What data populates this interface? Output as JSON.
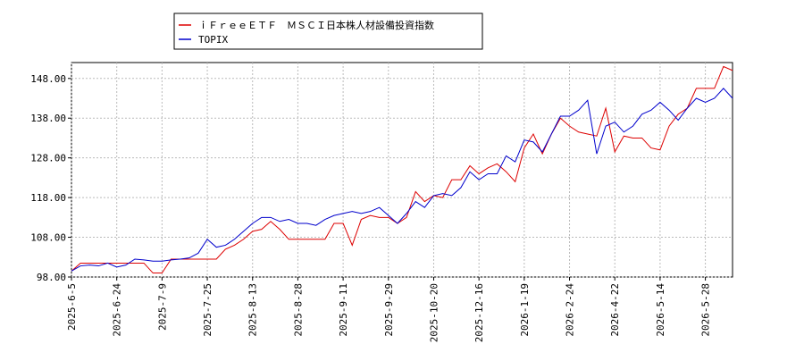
{
  "chart_data": {
    "type": "line",
    "categories": [
      "2025-6-5",
      null,
      null,
      null,
      null,
      "2025-6-24",
      null,
      null,
      null,
      null,
      "2025-7-9",
      null,
      null,
      null,
      null,
      "2025-7-25",
      null,
      null,
      null,
      null,
      "2025-8-13",
      null,
      null,
      null,
      null,
      "2025-8-28",
      null,
      null,
      null,
      null,
      "2025-9-11",
      null,
      null,
      null,
      null,
      "2025-9-29",
      null,
      null,
      null,
      null,
      "2025-10-20",
      null,
      null,
      null,
      null,
      "2025-12-16",
      null,
      null,
      null,
      null,
      "2026-1-19",
      null,
      null,
      null,
      null,
      "2026-2-24",
      null,
      null,
      null,
      null,
      "2026-4-22",
      null,
      null,
      null,
      null,
      "2026-5-14",
      null,
      null,
      null,
      null,
      "2026-5-28",
      null,
      null,
      null
    ],
    "series": [
      {
        "name": "ｉＦｒｅｅＥＴＦ　ＭＳＣＩ日本株人材設備投資指数",
        "color": "#dd0000",
        "values": [
          99.5,
          101.5,
          101.5,
          101.5,
          101.5,
          101.5,
          101.5,
          101.5,
          101.5,
          99,
          99,
          102.5,
          102.5,
          102.5,
          102.5,
          102.5,
          102.5,
          105,
          106,
          107.5,
          109.5,
          110,
          112,
          110,
          107.5,
          107.5,
          107.5,
          107.5,
          107.5,
          111.5,
          111.5,
          106,
          112.5,
          113.5,
          113,
          113,
          111.5,
          113,
          119.5,
          117,
          118.5,
          118,
          122.5,
          122.5,
          126,
          124,
          125.5,
          126.5,
          124.5,
          122,
          130.5,
          134,
          129,
          134,
          138,
          136,
          134.5,
          134,
          133.5,
          140.5,
          129.5,
          133.5,
          133,
          133,
          130.5,
          130,
          136,
          139,
          140.5,
          145.5,
          145.5,
          145.5,
          151,
          150
        ]
      },
      {
        "name": "TOPIX",
        "color": "#0000cc",
        "values": [
          99.5,
          100.8,
          101,
          100.8,
          101.5,
          100.5,
          101,
          102.5,
          102.3,
          102,
          102,
          102.3,
          102.5,
          102.8,
          104,
          107.5,
          105.5,
          106,
          107.5,
          109.5,
          111.5,
          113,
          113,
          112,
          112.5,
          111.5,
          111.5,
          111,
          112.5,
          113.5,
          114,
          114.5,
          114,
          114.5,
          115.5,
          113.5,
          111.5,
          114,
          117,
          115.5,
          118.5,
          119,
          118.5,
          120.5,
          124.5,
          122.5,
          124,
          124,
          128.5,
          127,
          132.5,
          132,
          129.5,
          134,
          138.5,
          138.5,
          140,
          142.5,
          129,
          136,
          137,
          134.5,
          136,
          139,
          140,
          142,
          140,
          137.5,
          140.5,
          143,
          142,
          143,
          145.5,
          143
        ]
      }
    ],
    "ylim": [
      98,
      152
    ],
    "yticks": [
      {
        "value": 98,
        "label": "98.00"
      },
      {
        "value": 108,
        "label": "108.00"
      },
      {
        "value": 118,
        "label": "118.00"
      },
      {
        "value": 128,
        "label": "128.00"
      },
      {
        "value": 138,
        "label": "138.00"
      },
      {
        "value": 148,
        "label": "148.00"
      }
    ],
    "grid": true
  }
}
